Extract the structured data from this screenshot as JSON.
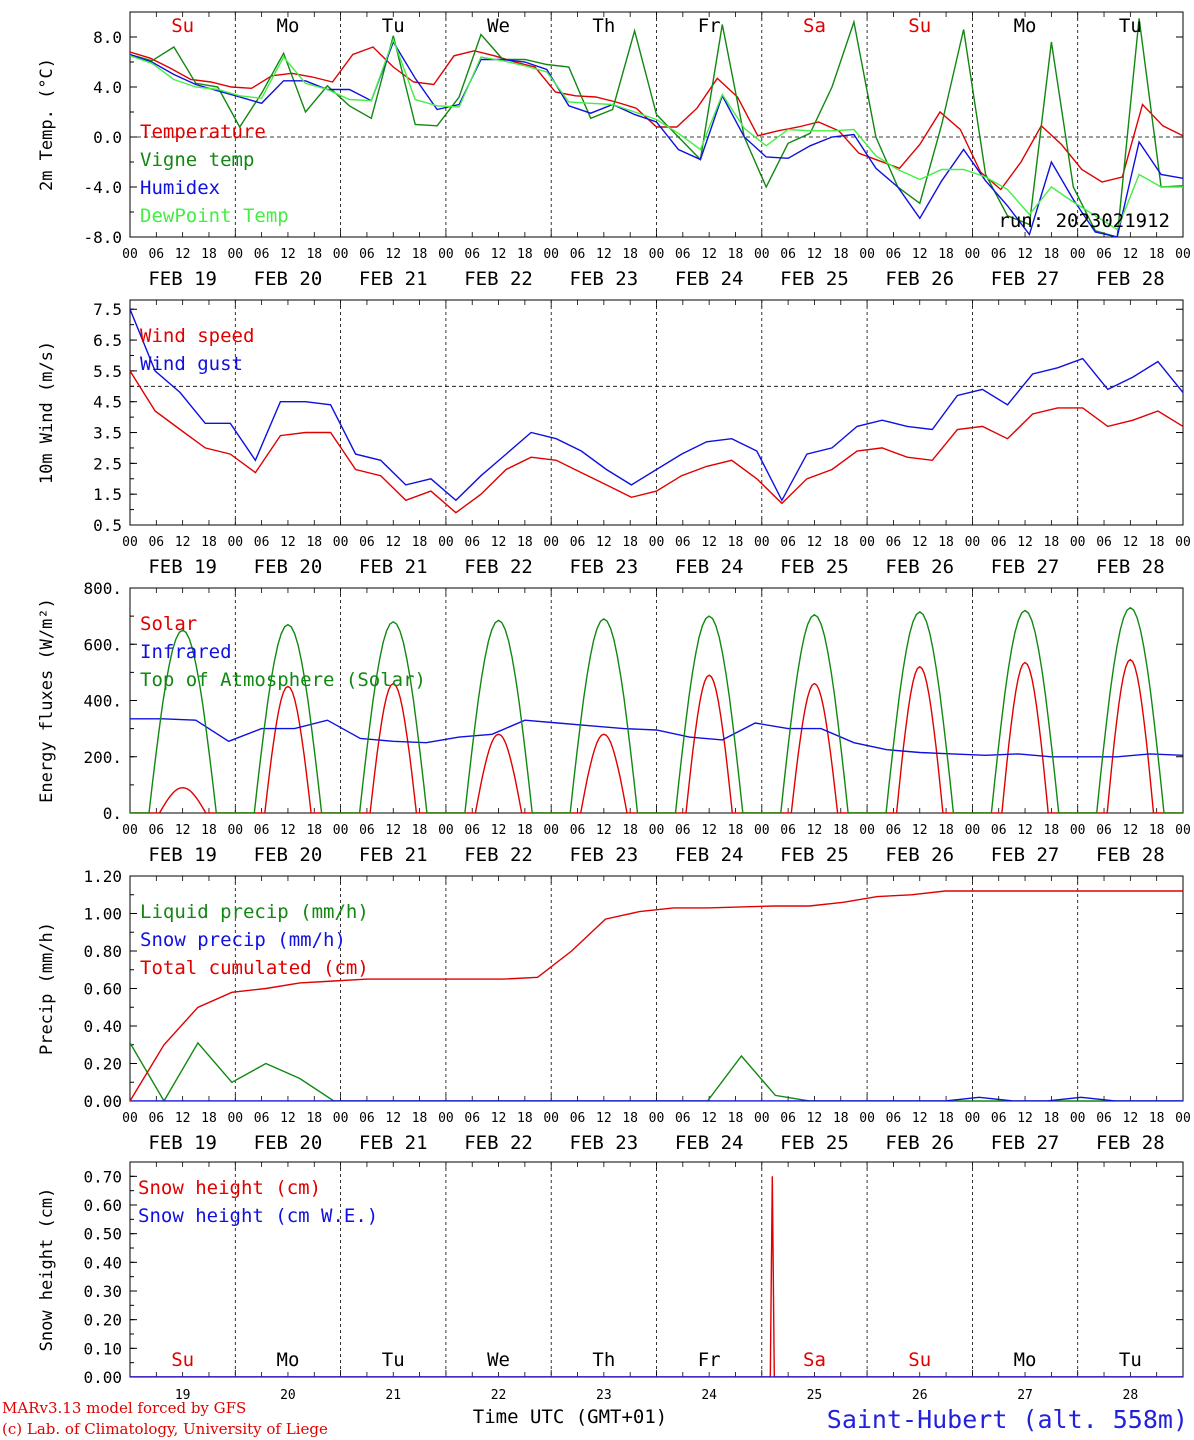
{
  "days": [
    "FEB 19",
    "FEB 20",
    "FEB 21",
    "FEB 22",
    "FEB 23",
    "FEB 24",
    "FEB 25",
    "FEB 26",
    "FEB 27",
    "FEB 28"
  ],
  "weekdays": [
    "Su",
    "Mo",
    "Tu",
    "We",
    "Th",
    "Fr",
    "Sa",
    "Su",
    "Mo",
    "Tu"
  ],
  "weekday_colors": [
    "#e00000",
    "#000000",
    "#000000",
    "#000000",
    "#000000",
    "#000000",
    "#e00000",
    "#e00000",
    "#000000",
    "#000000"
  ],
  "hour_ticks": [
    "00",
    "06",
    "12",
    "18"
  ],
  "hour_tick_end": "00",
  "bottom_day_numbers": [
    "19",
    "20",
    "21",
    "22",
    "23",
    "24",
    "25",
    "26",
    "27",
    "28"
  ],
  "footer": {
    "credit_line1": "MARv3.13 model forced by GFS",
    "credit_line2": "(c) Lab. of Climatology, University of Liege",
    "xlabel": "Time UTC (GMT+01)",
    "station": "Saint-Hubert (alt. 558m)"
  },
  "chart_data": [
    {
      "type": "line",
      "ylabel": "2m Temp. (°C)",
      "ylim": [
        -8,
        10
      ],
      "yticks": [
        "8.0",
        "4.0",
        "0.0",
        "-4.0",
        "-8.0"
      ],
      "ytick_values": [
        8,
        4,
        0,
        -4,
        -8
      ],
      "refline": 0,
      "annotation": "run: 2023021912",
      "series": [
        {
          "name": "Temperature",
          "color": "#e00000",
          "values": [
            6.8,
            6.3,
            5.5,
            4.6,
            4.4,
            4.0,
            3.9,
            4.9,
            5.1,
            4.8,
            4.4,
            6.6,
            7.2,
            5.6,
            4.4,
            4.2,
            6.5,
            6.9,
            6.5,
            6.0,
            5.6,
            3.6,
            3.3,
            3.2,
            2.8,
            2.3,
            0.8,
            0.8,
            2.3,
            4.7,
            3.2,
            0.1,
            0.5,
            0.8,
            1.2,
            0.5,
            -1.3,
            -1.9,
            -2.5,
            -0.6,
            2.0,
            0.6,
            -2.8,
            -4.2,
            -2.0,
            0.9,
            -0.6,
            -2.6,
            -3.6,
            -3.2,
            2.6,
            0.9,
            0.1
          ],
          "colorkey": "red"
        },
        {
          "name": "Vigne temp",
          "color": "#118811",
          "values": [
            6.6,
            6.1,
            7.2,
            4.3,
            4.0,
            0.8,
            3.5,
            6.7,
            2.0,
            4.1,
            2.5,
            1.5,
            8.1,
            1.0,
            0.9,
            3.2,
            8.2,
            6.2,
            6.2,
            5.8,
            5.6,
            1.5,
            2.2,
            8.5,
            1.8,
            0.0,
            -1.8,
            9.0,
            0.0,
            -4.0,
            -0.5,
            0.3,
            4.0,
            9.2,
            0.0,
            -4.0,
            -5.3,
            1.0,
            8.6,
            -3.0,
            -6.3,
            -7.0,
            7.6,
            -4.0,
            -7.5,
            -8.0,
            9.5,
            -4.0,
            -3.9
          ],
          "colorkey": "green"
        },
        {
          "name": "Humidex",
          "color": "#1010e0",
          "values": [
            6.6,
            6.0,
            5.0,
            4.2,
            3.7,
            3.2,
            2.7,
            4.5,
            4.5,
            3.8,
            3.8,
            2.9,
            7.6,
            4.7,
            2.2,
            2.6,
            6.2,
            6.2,
            6.0,
            5.4,
            2.5,
            1.9,
            2.6,
            1.8,
            1.2,
            -1.0,
            -1.8,
            3.3,
            0.0,
            -1.6,
            -1.7,
            -0.7,
            0.0,
            0.2,
            -2.5,
            -4.0,
            -6.5,
            -3.5,
            -1.0,
            -3.5,
            -5.5,
            -7.8,
            -2.0,
            -5.0,
            -7.6,
            -8.0,
            -0.4,
            -3.0,
            -3.3
          ],
          "colorkey": "blue"
        },
        {
          "name": "DewPoint Temp",
          "color": "#44ee44",
          "values": [
            6.5,
            5.9,
            4.6,
            4.0,
            3.8,
            3.3,
            3.1,
            6.4,
            4.3,
            3.8,
            3.0,
            2.9,
            7.8,
            3.0,
            2.5,
            2.4,
            6.4,
            6.1,
            5.7,
            5.2,
            2.8,
            2.7,
            2.6,
            2.0,
            1.4,
            0.3,
            -1.0,
            3.4,
            0.7,
            -0.7,
            0.6,
            0.5,
            0.5,
            0.6,
            -1.5,
            -2.6,
            -3.4,
            -2.6,
            -2.6,
            -3.2,
            -4.2,
            -6.2,
            -4.0,
            -5.2,
            -6.3,
            -7.4,
            -3.0,
            -4.0,
            -4.0
          ],
          "colorkey": "lightgreen"
        }
      ]
    },
    {
      "type": "line",
      "ylabel": "10m Wind (m/s)",
      "ylim": [
        0.5,
        7.8
      ],
      "yticks": [
        "7.5",
        "6.5",
        "5.5",
        "4.5",
        "3.5",
        "2.5",
        "1.5",
        "0.5"
      ],
      "ytick_values": [
        7.5,
        6.5,
        5.5,
        4.5,
        3.5,
        2.5,
        1.5,
        0.5
      ],
      "refline": 5,
      "series": [
        {
          "name": "Wind speed",
          "color": "#e00000",
          "values": [
            5.5,
            4.2,
            3.6,
            3.0,
            2.8,
            2.2,
            3.4,
            3.5,
            3.5,
            2.3,
            2.1,
            1.3,
            1.6,
            0.9,
            1.5,
            2.3,
            2.7,
            2.6,
            2.2,
            1.8,
            1.4,
            1.6,
            2.1,
            2.4,
            2.6,
            2.0,
            1.2,
            2.0,
            2.3,
            2.9,
            3.0,
            2.7,
            2.6,
            3.6,
            3.7,
            3.3,
            4.1,
            4.3,
            4.3,
            3.7,
            3.9,
            4.2,
            3.7
          ],
          "colorkey": "red"
        },
        {
          "name": "Wind gust",
          "color": "#1010e0",
          "values": [
            7.5,
            5.5,
            4.8,
            3.8,
            3.8,
            2.6,
            4.5,
            4.5,
            4.4,
            2.8,
            2.6,
            1.8,
            2.0,
            1.3,
            2.1,
            2.8,
            3.5,
            3.3,
            2.9,
            2.3,
            1.8,
            2.3,
            2.8,
            3.2,
            3.3,
            2.9,
            1.3,
            2.8,
            3.0,
            3.7,
            3.9,
            3.7,
            3.6,
            4.7,
            4.9,
            4.4,
            5.4,
            5.6,
            5.9,
            4.9,
            5.3,
            5.8,
            4.8
          ],
          "colorkey": "blue"
        }
      ]
    },
    {
      "type": "line",
      "ylabel": "Energy fluxes (W/m²)",
      "ylim": [
        0,
        800
      ],
      "yticks": [
        "800.",
        "600.",
        "400.",
        "200.",
        "0."
      ],
      "ytick_values": [
        800,
        600,
        400,
        200,
        0
      ],
      "series": [
        {
          "name": "Solar",
          "color": "#e00000",
          "peaks": [
            90,
            450,
            460,
            280,
            280,
            490,
            460,
            520,
            535,
            545
          ],
          "colorkey": "red"
        },
        {
          "name": "Infrared",
          "color": "#1010e0",
          "values": [
            335,
            335,
            330,
            255,
            300,
            300,
            330,
            265,
            255,
            250,
            270,
            280,
            330,
            320,
            310,
            300,
            295,
            270,
            260,
            320,
            300,
            300,
            250,
            225,
            215,
            210,
            205,
            210,
            200,
            200,
            200,
            210,
            205
          ],
          "colorkey": "blue"
        },
        {
          "name": "Top of Atmosphere (Solar)",
          "color": "#118811",
          "peaks": [
            650,
            670,
            680,
            685,
            690,
            700,
            705,
            715,
            720,
            730
          ],
          "colorkey": "green"
        }
      ]
    },
    {
      "type": "line",
      "ylabel": "Precip (mm/h)",
      "ylim": [
        0,
        1.2
      ],
      "yticks": [
        "1.20",
        "1.00",
        "0.80",
        "0.60",
        "0.40",
        "0.20",
        "0.00"
      ],
      "ytick_values": [
        1.2,
        1.0,
        0.8,
        0.6,
        0.4,
        0.2,
        0.0
      ],
      "series": [
        {
          "name": "Liquid precip (mm/h)",
          "color": "#118811",
          "values": [
            0.31,
            0.0,
            0.31,
            0.1,
            0.2,
            0.12,
            0.0,
            0.0,
            0.0,
            0.0,
            0.0,
            0.0,
            0.0,
            0.0,
            0.0,
            0.0,
            0.0,
            0.0,
            0.24,
            0.03,
            0.0,
            0.0,
            0.0,
            0.0,
            0.0,
            0.0,
            0.0,
            0.0,
            0.0,
            0.0,
            0.0,
            0.0
          ],
          "colorkey": "green"
        },
        {
          "name": "Snow precip (mm/h)",
          "color": "#1010e0",
          "values": [
            0.0,
            0.0,
            0.0,
            0.0,
            0.0,
            0.0,
            0.0,
            0.0,
            0.0,
            0.0,
            0.0,
            0.0,
            0.0,
            0.0,
            0.0,
            0.0,
            0.0,
            0.0,
            0.0,
            0.0,
            0.0,
            0.0,
            0.0,
            0.0,
            0.0,
            0.02,
            0.0,
            0.0,
            0.02,
            0.0,
            0.0,
            0.0
          ],
          "colorkey": "blue"
        },
        {
          "name": "Total cumulated (cm)",
          "color": "#e00000",
          "values": [
            0.0,
            0.3,
            0.5,
            0.58,
            0.6,
            0.63,
            0.64,
            0.65,
            0.65,
            0.65,
            0.65,
            0.65,
            0.66,
            0.8,
            0.97,
            1.01,
            1.03,
            1.03,
            1.035,
            1.04,
            1.04,
            1.06,
            1.09,
            1.1,
            1.12,
            1.12,
            1.12,
            1.12,
            1.12,
            1.12,
            1.12,
            1.12
          ],
          "colorkey": "red"
        }
      ]
    },
    {
      "type": "line",
      "ylabel": "Snow height (cm)",
      "ylim": [
        0,
        0.75
      ],
      "yticks": [
        "0.70",
        "0.60",
        "0.50",
        "0.40",
        "0.30",
        "0.20",
        "0.10",
        "0.00"
      ],
      "ytick_values": [
        0.7,
        0.6,
        0.5,
        0.4,
        0.3,
        0.2,
        0.1,
        0.0
      ],
      "series": [
        {
          "name": "Snow height (cm)",
          "color": "#e00000",
          "spike_day": 6.1,
          "spike_value": 0.7,
          "colorkey": "red"
        },
        {
          "name": "Snow height (cm W.E.)",
          "color": "#1010e0",
          "colorkey": "blue"
        }
      ]
    }
  ]
}
